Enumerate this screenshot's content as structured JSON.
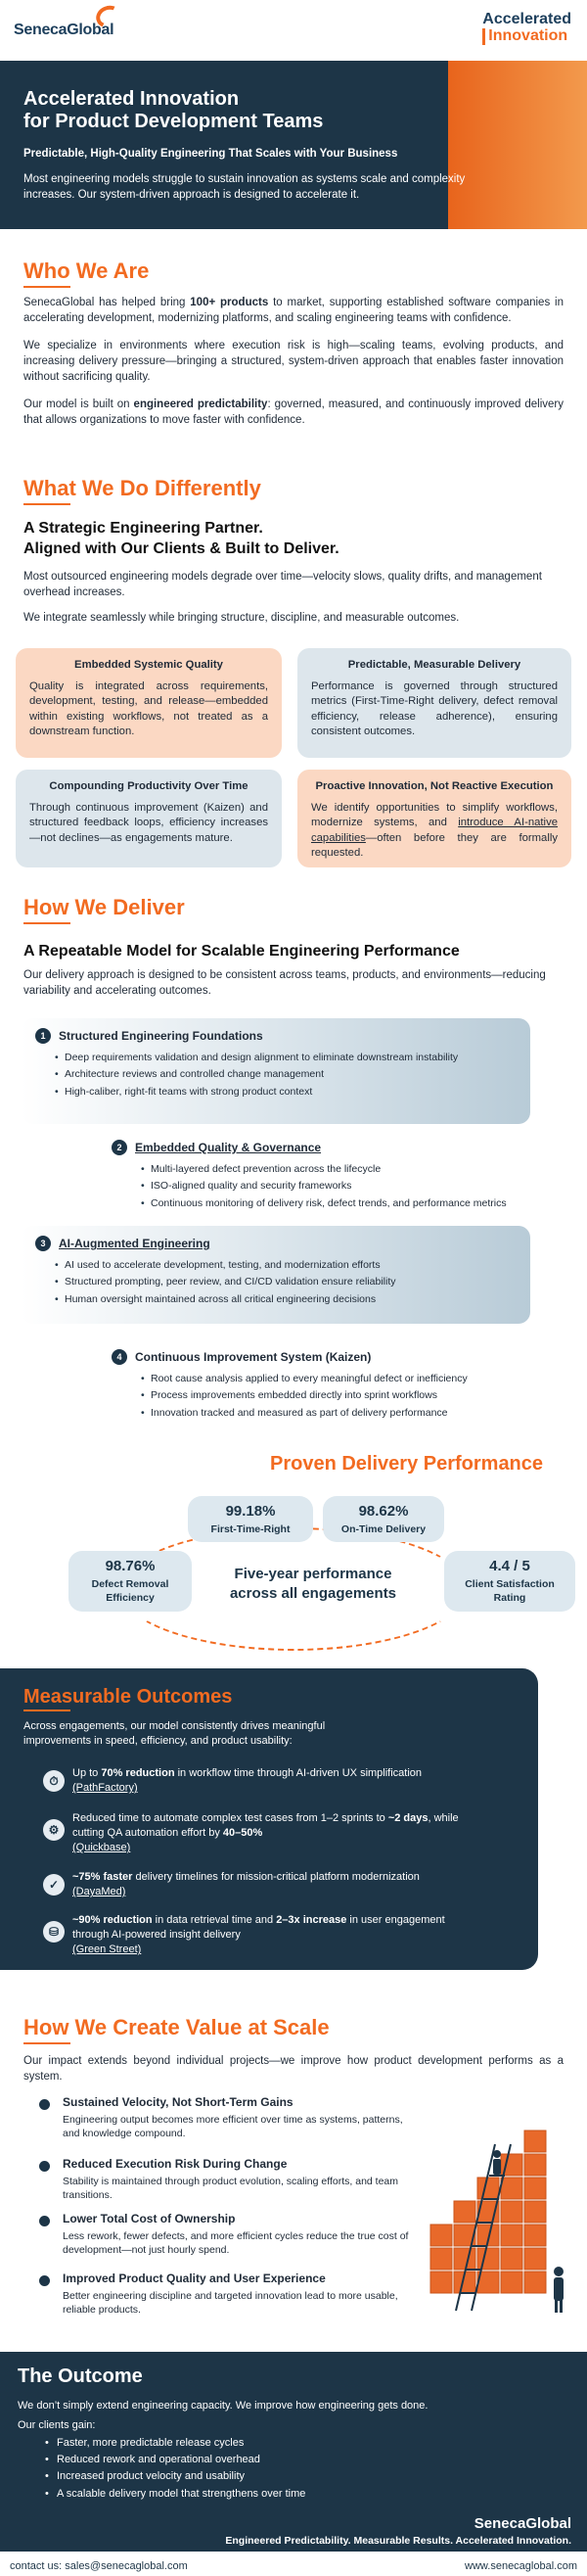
{
  "header": {
    "logo_text": "SenecaGlobal",
    "brand_line1": "Accelerated",
    "brand_line2": "Innovation"
  },
  "hero": {
    "title_line1": "Accelerated Innovation",
    "title_line2": "for Product Development Teams",
    "subtitle": "Predictable, High-Quality Engineering That Scales with Your Business",
    "intro": "Most engineering models struggle to sustain innovation as systems scale and complexity increases.  Our system-driven approach is designed to accelerate it."
  },
  "who": {
    "title": "Who We Are",
    "p1_pre": "SenecaGlobal has helped bring ",
    "p1_bold": "100+ products",
    "p1_post": " to market, supporting established software companies in accelerating development, modernizing platforms, and scaling engineering teams with confidence.",
    "p2": "We specialize in environments where execution risk is high—scaling teams, evolving products, and increasing delivery pressure—bringing a structured, system-driven approach that enables faster innovation without sacrificing quality.",
    "p3_pre": "Our model is built on ",
    "p3_bold": "engineered predictability",
    "p3_post": ": governed, measured, and continuously improved delivery that allows organizations to move faster with confidence."
  },
  "different": {
    "title": "What We Do Differently",
    "heading_line1": "A Strategic Engineering Partner.",
    "heading_line2": "Aligned with Our Clients & Built to Deliver.",
    "p1": "Most outsourced engineering models degrade over time—velocity slows, quality drifts, and management overhead increases.",
    "p2": "We integrate seamlessly while bringing structure, discipline, and measurable outcomes.",
    "cards": [
      {
        "title": "Embedded Systemic Quality",
        "text": "Quality is integrated across requirements, development, testing, and release—embedded within existing workflows, not treated as a downstream function."
      },
      {
        "title": "Predictable, Measurable Delivery",
        "text": "Performance is governed through structured metrics (First-Time-Right delivery, defect removal efficiency, release adherence), ensuring consistent outcomes."
      },
      {
        "title": "Compounding Productivity Over Time",
        "text": "Through continuous improvement (Kaizen) and structured feedback loops, efficiency increases—not declines—as engagements mature."
      },
      {
        "title": "Proactive Innovation, Not Reactive Execution",
        "text_pre": "We identify opportunities to simplify workflows, modernize systems, and ",
        "text_link": "introduce AI-native capabilities",
        "text_post": "—often before they are formally requested."
      }
    ]
  },
  "deliver": {
    "title": "How We Deliver",
    "heading": "A Repeatable Model for Scalable Engineering Performance",
    "intro": "Our delivery approach is designed to be consistent across teams, products, and environments—reducing variability and accelerating outcomes.",
    "steps": [
      {
        "num": "1",
        "title": "Structured Engineering Foundations",
        "items": [
          "Deep requirements validation and design alignment to eliminate downstream instability",
          "Architecture reviews and controlled change management",
          "High-caliber, right-fit teams with strong product context"
        ]
      },
      {
        "num": "2",
        "title": "Embedded Quality & Governance",
        "items": [
          "Multi-layered defect prevention across the lifecycle",
          "ISO-aligned quality and security frameworks",
          "Continuous monitoring of delivery risk, defect trends, and performance metrics"
        ]
      },
      {
        "num": "3",
        "title": "AI-Augmented Engineering",
        "items": [
          "AI used to accelerate development, testing, and modernization efforts",
          "Structured prompting, peer review, and CI/CD validation ensure reliability",
          "Human oversight maintained across all critical engineering decisions"
        ]
      },
      {
        "num": "4",
        "title": "Continuous Improvement System (Kaizen)",
        "items": [
          "Root cause analysis applied to every meaningful defect or inefficiency",
          "Process improvements embedded directly into sprint workflows",
          "Innovation tracked and measured as part of delivery performance"
        ]
      }
    ]
  },
  "performance": {
    "title": "Proven Delivery Performance",
    "center_line1": "Five-year performance",
    "center_line2": "across all engagements",
    "metrics": [
      {
        "value": "99.18%",
        "label": "First-Time-Right"
      },
      {
        "value": "98.62%",
        "label": "On-Time Delivery"
      },
      {
        "value": "98.76%",
        "label_line1": "Defect Removal",
        "label_line2": "Efficiency"
      },
      {
        "value": "4.4 / 5",
        "label_line1": "Client Satisfaction",
        "label_line2": "Rating"
      }
    ]
  },
  "outcomes": {
    "title": "Measurable Outcomes",
    "intro_line1": "Across engagements, our model consistently drives meaningful",
    "intro_line2": "improvements in speed, efficiency, and product usability:",
    "items": [
      {
        "icon": "speed-icon",
        "line1_pre": "Up to ",
        "bold1": "70% reduction",
        "line1_post": " in workflow time through AI-driven UX simplification",
        "client": "(PathFactory)"
      },
      {
        "icon": "automation-icon",
        "line1_pre": "Reduced time to automate complex test cases from 1–2 sprints to ",
        "bold1": "~2 days",
        "line1_post": ", while",
        "line2_pre": "cutting QA automation effort by ",
        "bold2": "40–50%",
        "client": "(Quickbase)"
      },
      {
        "icon": "timeline-icon",
        "line1_pre": "",
        "bold1": "~75% faster",
        "line1_post": " delivery timelines for mission-critical platform modernization",
        "client": "(DayaMed)"
      },
      {
        "icon": "data-icon",
        "line1_pre": "",
        "bold1": "~90% reduction",
        "line1_post": " in data retrieval time and ",
        "bold1b": "2–3x increase",
        "line1_post2": " in user engagement",
        "line2_pre": "through AI-powered insight delivery",
        "client": "(Green Street)"
      }
    ]
  },
  "value": {
    "title": "How We Create Value at Scale",
    "intro": "Our impact extends beyond individual projects—we improve how product development performs as a system.",
    "items": [
      {
        "title": "Sustained Velocity, Not Short-Term Gains",
        "text": "Engineering output becomes more efficient over time as systems, patterns, and knowledge compound."
      },
      {
        "title": "Reduced Execution Risk During Change",
        "text": "Stability is maintained through product evolution, scaling efforts, and team transitions."
      },
      {
        "title": "Lower Total Cost of Ownership",
        "text": "Less rework, fewer defects, and more efficient cycles reduce the true cost of development—not just hourly spend."
      },
      {
        "title": "Improved Product Quality and User Experience",
        "text": "Better engineering discipline and targeted innovation lead to more usable, reliable products."
      }
    ]
  },
  "the_outcome": {
    "title": "The Outcome",
    "p1": "We don’t simply extend engineering capacity. We improve how engineering gets done.",
    "p2": "Our clients gain:",
    "items": [
      "Faster, more predictable release cycles",
      "Reduced rework and operational overhead",
      "Increased product velocity and usability",
      "A scalable delivery model that strengthens over time"
    ],
    "brand": "SenecaGlobal",
    "tagline": "Engineered Predictability. Measurable Results. Accelerated Innovation."
  },
  "footer": {
    "contact": "contact us: sales@senecaglobal.com",
    "website": "www.senecaglobal.com"
  },
  "colors": {
    "navy": "#1d3547",
    "orange": "#f26b21",
    "peach": "#fbd8c3",
    "pale_blue": "#dde6ec"
  }
}
